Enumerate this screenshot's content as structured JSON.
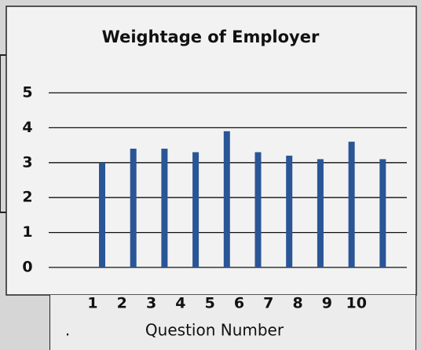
{
  "chart_data": {
    "type": "bar",
    "title": "Weightage of Employer",
    "categories": [
      "1",
      "2",
      "3",
      "4",
      "5",
      "6",
      "7",
      "8",
      "9",
      "10"
    ],
    "values": [
      3.0,
      3.4,
      3.4,
      3.3,
      3.9,
      3.3,
      3.2,
      3.1,
      3.6,
      3.1
    ],
    "color": "#2a5596",
    "x_label": "Question Number",
    "footnote": ".",
    "ylim": [
      0,
      5
    ],
    "yticks": [
      0,
      1,
      2,
      3,
      4,
      5
    ],
    "grid": true
  }
}
